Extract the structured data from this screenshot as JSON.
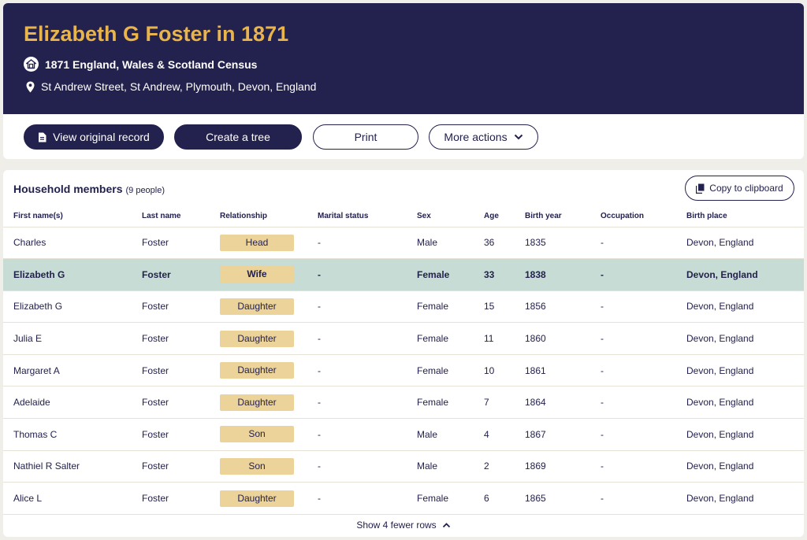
{
  "header": {
    "title": "Elizabeth G Foster in 1871",
    "census": "1871 England, Wales & Scotland Census",
    "place": "St Andrew Street, St Andrew, Plymouth, Devon, England"
  },
  "actions": {
    "view_record": "View original record",
    "create_tree": "Create a tree",
    "print": "Print",
    "more_actions": "More actions"
  },
  "household": {
    "title": "Household members",
    "count": "(9 people)",
    "copy": "Copy to clipboard",
    "columns": [
      "First name(s)",
      "Last name",
      "Relationship",
      "Marital status",
      "Sex",
      "Age",
      "Birth year",
      "Occupation",
      "Birth place"
    ],
    "rows": [
      [
        "Charles",
        "Foster",
        "Head",
        "-",
        "Male",
        "36",
        "1835",
        "-",
        "Devon, England"
      ],
      [
        "Elizabeth G",
        "Foster",
        "Wife",
        "-",
        "Female",
        "33",
        "1838",
        "-",
        "Devon, England"
      ],
      [
        "Elizabeth G",
        "Foster",
        "Daughter",
        "-",
        "Female",
        "15",
        "1856",
        "-",
        "Devon, England"
      ],
      [
        "Julia E",
        "Foster",
        "Daughter",
        "-",
        "Female",
        "11",
        "1860",
        "-",
        "Devon, England"
      ],
      [
        "Margaret A",
        "Foster",
        "Daughter",
        "-",
        "Female",
        "10",
        "1861",
        "-",
        "Devon, England"
      ],
      [
        "Adelaide",
        "Foster",
        "Daughter",
        "-",
        "Female",
        "7",
        "1864",
        "-",
        "Devon, England"
      ],
      [
        "Thomas C",
        "Foster",
        "Son",
        "-",
        "Male",
        "4",
        "1867",
        "-",
        "Devon, England"
      ],
      [
        "Nathiel R Salter",
        "Foster",
        "Son",
        "-",
        "Male",
        "2",
        "1869",
        "-",
        "Devon, England"
      ],
      [
        "Alice L",
        "Foster",
        "Daughter",
        "-",
        "Female",
        "6",
        "1865",
        "-",
        "Devon, England"
      ]
    ],
    "highlighted_row": 1,
    "show_fewer": "Show 4 fewer rows"
  },
  "colors": {
    "navy": "#23214d",
    "gold": "#e8b44b",
    "pill": "#ecd39a",
    "highlight": "#c7dcd5"
  },
  "icons": {
    "census": "house-icon",
    "place": "location-pin-icon",
    "record": "document-icon",
    "more": "chevron-down-icon",
    "copy": "copy-icon",
    "fewer": "chevron-up-icon"
  }
}
